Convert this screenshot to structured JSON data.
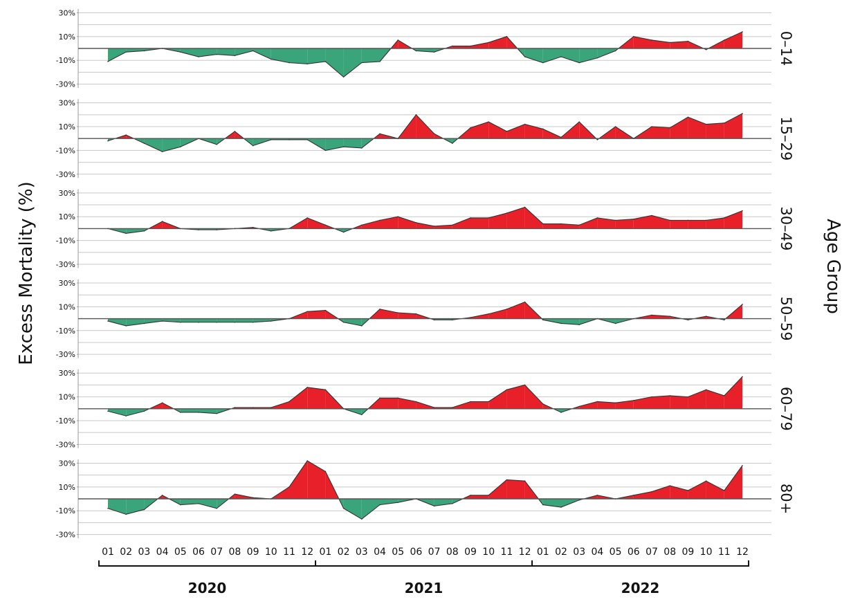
{
  "chart_data": {
    "type": "area",
    "ylabel": "Excess Mortality (%)",
    "right_label": "Age Group",
    "y_ticks": [
      "30%",
      "10%",
      "-10%",
      "-30%"
    ],
    "y_tick_values": [
      30,
      10,
      -10,
      -30
    ],
    "ylim": [
      -32,
      32
    ],
    "grid": true,
    "colors": {
      "positive": "#e8202a",
      "negative": "#3aa57a",
      "line": "#333333"
    },
    "month_labels": [
      "01",
      "02",
      "03",
      "04",
      "05",
      "06",
      "07",
      "08",
      "09",
      "10",
      "11",
      "12"
    ],
    "years": [
      "2020",
      "2021",
      "2022"
    ],
    "panels": [
      {
        "label": "0-14",
        "values": [
          -11,
          -3,
          -2,
          0,
          -3,
          -7,
          -5,
          -6,
          -2,
          -9,
          -12,
          -13,
          -11,
          -24,
          -12,
          -11,
          7,
          -2,
          -3,
          2,
          2,
          5,
          10,
          -7,
          -12,
          -7,
          -12,
          -8,
          -2,
          10,
          7,
          5,
          6,
          -1,
          7,
          14
        ]
      },
      {
        "label": "15-29",
        "values": [
          -2,
          3,
          -4,
          -11,
          -7,
          0,
          -5,
          6,
          -6,
          -1,
          -1,
          -1,
          -10,
          -7,
          -8,
          4,
          0,
          20,
          4,
          -4,
          9,
          14,
          6,
          12,
          8,
          1,
          14,
          -1,
          10,
          0,
          10,
          9,
          18,
          12,
          13,
          21
        ]
      },
      {
        "label": "30-49",
        "values": [
          0,
          -4,
          -2,
          6,
          0,
          -1,
          -1,
          0,
          1,
          -2,
          0,
          9,
          3,
          -3,
          3,
          7,
          10,
          5,
          2,
          3,
          9,
          9,
          13,
          18,
          4,
          4,
          3,
          9,
          7,
          8,
          11,
          7,
          7,
          7,
          9,
          15
        ]
      },
      {
        "label": "50-59",
        "values": [
          -2,
          -6,
          -4,
          -2,
          -3,
          -3,
          -3,
          -3,
          -3,
          -2,
          0,
          6,
          7,
          -3,
          -6,
          8,
          5,
          4,
          -1,
          -1,
          1,
          4,
          8,
          14,
          -1,
          -4,
          -5,
          0,
          -4,
          0,
          3,
          2,
          -1,
          2,
          -1,
          12
        ]
      },
      {
        "label": "60-79",
        "values": [
          -2,
          -6,
          -2,
          5,
          -3,
          -3,
          -4,
          1,
          1,
          1,
          6,
          18,
          16,
          0,
          -5,
          9,
          9,
          6,
          1,
          1,
          6,
          6,
          16,
          20,
          4,
          -3,
          2,
          6,
          5,
          7,
          10,
          11,
          10,
          16,
          11,
          27
        ]
      },
      {
        "label": "80+",
        "values": [
          -8,
          -13,
          -9,
          3,
          -5,
          -4,
          -8,
          4,
          1,
          0,
          10,
          32,
          23,
          -8,
          -17,
          -5,
          -3,
          0,
          -6,
          -4,
          3,
          3,
          16,
          15,
          -5,
          -7,
          -1,
          3,
          0,
          3,
          6,
          11,
          7,
          15,
          7,
          28
        ]
      }
    ]
  }
}
